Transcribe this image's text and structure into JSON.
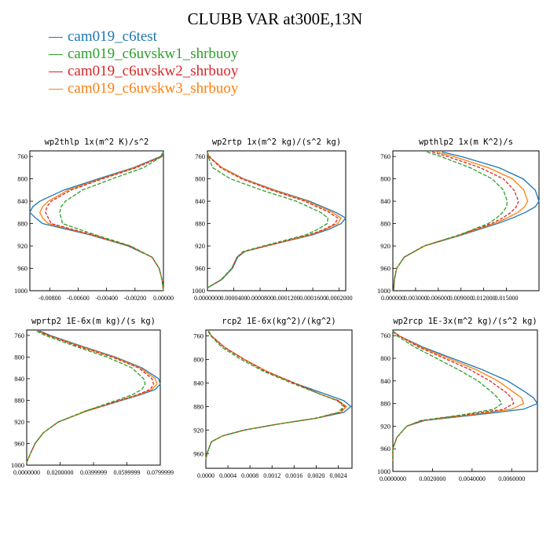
{
  "figure": {
    "title": "CLUBB VAR at300E,13N",
    "legend": [
      {
        "label": "cam019_c6test",
        "color": "#1f77b4"
      },
      {
        "label": "cam019_c6uvskw1_shrbuoy",
        "color": "#2ca02c"
      },
      {
        "label": "cam019_c6uvskw2_shrbuoy",
        "color": "#d62728"
      },
      {
        "label": "cam019_c6uvskw3_shrbuoy",
        "color": "#ff7f0e"
      }
    ]
  },
  "chart_data": [
    {
      "type": "line",
      "title": "wp2thlp  1x(m^2 K)/s^2",
      "xlim": [
        -0.0094,
        0.0
      ],
      "ylim": [
        1000,
        750
      ],
      "xticks": [
        "-0.00800",
        "-0.00600",
        "-0.00400",
        "-0.00200",
        "0.00000"
      ],
      "xtick_values": [
        -0.008,
        -0.006,
        -0.004,
        -0.002,
        0.0
      ],
      "yticks": [
        760,
        800,
        840,
        880,
        920,
        960,
        1000
      ],
      "y": [
        752,
        760,
        780,
        800,
        820,
        840,
        850,
        860,
        870,
        880,
        900,
        920,
        940,
        960,
        980,
        1000
      ],
      "series": [
        {
          "color": "#1f77b4",
          "dash": "solid",
          "values": [
            0.0,
            -0.0002,
            -0.0021,
            -0.0046,
            -0.007,
            -0.0087,
            -0.0092,
            -0.0094,
            -0.009,
            -0.0085,
            -0.0052,
            -0.0025,
            -0.0008,
            -0.0003,
            -0.0001,
            0.0
          ]
        },
        {
          "color": "#ff7f0e",
          "dash": "solid",
          "values": [
            0.0,
            -0.0001,
            -0.002,
            -0.0044,
            -0.0067,
            -0.0081,
            -0.0085,
            -0.0087,
            -0.0085,
            -0.0081,
            -0.0051,
            -0.0024,
            -0.0008,
            -0.0003,
            -0.0001,
            0.0
          ]
        },
        {
          "color": "#d62728",
          "dash": "4,2",
          "values": [
            0.0,
            -0.0001,
            -0.0019,
            -0.0043,
            -0.0065,
            -0.0079,
            -0.0082,
            -0.0083,
            -0.0081,
            -0.0079,
            -0.005,
            -0.0024,
            -0.0008,
            -0.0003,
            -0.0001,
            0.0
          ]
        },
        {
          "color": "#2ca02c",
          "dash": "5,2",
          "values": [
            0.0,
            -0.0001,
            -0.0014,
            -0.0036,
            -0.0057,
            -0.0069,
            -0.0072,
            -0.0073,
            -0.0072,
            -0.0071,
            -0.0048,
            -0.0023,
            -0.0008,
            -0.0003,
            -0.0001,
            0.0
          ]
        }
      ]
    },
    {
      "type": "line",
      "title": "wp2rtp  1x(m^2 kg)/(s^2 kg)",
      "xlim": [
        0.0,
        0.00021
      ],
      "ylim": [
        1000,
        750
      ],
      "xticks": [
        "0.0000000",
        "0.0000400",
        "0.0000800",
        "0.0001200",
        "0.0001600",
        "0.0002000"
      ],
      "xtick_values": [
        0.0,
        4e-05,
        8e-05,
        0.00012,
        0.00016,
        0.0002
      ],
      "yticks": [
        760,
        800,
        840,
        880,
        920,
        960,
        1000
      ],
      "y": [
        752,
        760,
        780,
        800,
        820,
        840,
        860,
        870,
        880,
        890,
        900,
        920,
        930,
        940,
        960,
        980,
        995
      ],
      "series": [
        {
          "color": "#1f77b4",
          "dash": "solid",
          "values": [
            0.0,
            2e-06,
            2.2e-05,
            5.5e-05,
            0.000102,
            0.000155,
            0.000195,
            0.00021,
            0.000203,
            0.000185,
            0.00016,
            9e-05,
            5.7e-05,
            4.6e-05,
            3.8e-05,
            2.2e-05,
            0.0
          ]
        },
        {
          "color": "#ff7f0e",
          "dash": "solid",
          "values": [
            0.0,
            2e-06,
            2.2e-05,
            5.4e-05,
            0.0001,
            0.000152,
            0.00019,
            0.000203,
            0.000198,
            0.00018,
            0.000157,
            9e-05,
            5.6e-05,
            4.5e-05,
            3.7e-05,
            2.1e-05,
            0.0
          ]
        },
        {
          "color": "#d62728",
          "dash": "4,2",
          "values": [
            0.0,
            2e-06,
            2e-05,
            5.2e-05,
            9.7e-05,
            0.000148,
            0.000185,
            0.000198,
            0.000194,
            0.000178,
            0.000155,
            8.9e-05,
            5.5e-05,
            4.5e-05,
            3.7e-05,
            2.1e-05,
            0.0
          ]
        },
        {
          "color": "#2ca02c",
          "dash": "5,2",
          "values": [
            0.0,
            1e-06,
            8e-06,
            3.5e-05,
            8.2e-05,
            0.000135,
            0.000172,
            0.000183,
            0.000182,
            0.000168,
            0.00015,
            8.5e-05,
            5.4e-05,
            4.5e-05,
            3.7e-05,
            2.1e-05,
            0.0
          ]
        }
      ]
    },
    {
      "type": "line",
      "title": "wpthlp2  1x(m K^2)/s",
      "xlim": [
        0.0,
        0.0193
      ],
      "ylim": [
        1000,
        750
      ],
      "xticks": [
        "0.000000",
        "0.003000",
        "0.006000",
        "0.009000",
        "0.012000",
        "0.015000"
      ],
      "xtick_values": [
        0.0,
        0.003,
        0.006,
        0.009,
        0.012,
        0.015
      ],
      "yticks": [
        760,
        800,
        840,
        880,
        920,
        960,
        1000
      ],
      "y": [
        752,
        760,
        780,
        800,
        820,
        840,
        850,
        860,
        870,
        880,
        900,
        920,
        940,
        960,
        980,
        1000
      ],
      "series": [
        {
          "color": "#1f77b4",
          "dash": "solid",
          "values": [
            0.0065,
            0.009,
            0.014,
            0.0172,
            0.0188,
            0.0193,
            0.0188,
            0.0175,
            0.0158,
            0.0138,
            0.0092,
            0.0042,
            0.0015,
            0.0005,
            0.0002,
            0.0001
          ]
        },
        {
          "color": "#ff7f0e",
          "dash": "solid",
          "values": [
            0.0058,
            0.008,
            0.0126,
            0.0158,
            0.0173,
            0.0178,
            0.0174,
            0.0165,
            0.0151,
            0.0134,
            0.009,
            0.0042,
            0.0015,
            0.0005,
            0.0002,
            0.0001
          ]
        },
        {
          "color": "#d62728",
          "dash": "4,2",
          "values": [
            0.0052,
            0.0072,
            0.0115,
            0.0146,
            0.016,
            0.0166,
            0.0163,
            0.0156,
            0.0145,
            0.013,
            0.0089,
            0.0041,
            0.0015,
            0.0005,
            0.0002,
            0.0001
          ]
        },
        {
          "color": "#2ca02c",
          "dash": "5,2",
          "values": [
            0.0045,
            0.0063,
            0.0102,
            0.0131,
            0.0146,
            0.0151,
            0.015,
            0.0145,
            0.0137,
            0.0126,
            0.0088,
            0.0041,
            0.0015,
            0.0005,
            0.0002,
            0.0001
          ]
        }
      ]
    },
    {
      "type": "line",
      "title": "wprtp2  1E-6x(m kg)/(s kg)",
      "xlim": [
        0.0,
        0.08
      ],
      "ylim": [
        1000,
        750
      ],
      "xticks": [
        "0.0000000",
        "0.0200000",
        "0.0399999",
        "0.0599999",
        "0.0799999"
      ],
      "xtick_values": [
        0.0,
        0.02,
        0.04,
        0.06,
        0.08
      ],
      "yticks": [
        760,
        800,
        840,
        880,
        920,
        960,
        1000
      ],
      "y": [
        752,
        760,
        780,
        800,
        820,
        840,
        850,
        860,
        870,
        880,
        900,
        920,
        940,
        960,
        980,
        995
      ],
      "series": [
        {
          "color": "#1f77b4",
          "dash": "solid",
          "values": [
            0.008,
            0.014,
            0.033,
            0.053,
            0.069,
            0.079,
            0.08,
            0.077,
            0.068,
            0.057,
            0.036,
            0.019,
            0.01,
            0.005,
            0.002,
            0.0
          ]
        },
        {
          "color": "#ff7f0e",
          "dash": "solid",
          "values": [
            0.007,
            0.013,
            0.032,
            0.052,
            0.068,
            0.077,
            0.078,
            0.075,
            0.067,
            0.056,
            0.036,
            0.019,
            0.01,
            0.005,
            0.002,
            0.0
          ]
        },
        {
          "color": "#d62728",
          "dash": "4,2",
          "values": [
            0.007,
            0.013,
            0.031,
            0.051,
            0.067,
            0.075,
            0.076,
            0.074,
            0.066,
            0.056,
            0.035,
            0.019,
            0.01,
            0.005,
            0.002,
            0.0
          ]
        },
        {
          "color": "#2ca02c",
          "dash": "5,2",
          "values": [
            0.006,
            0.011,
            0.029,
            0.048,
            0.063,
            0.07,
            0.071,
            0.069,
            0.063,
            0.054,
            0.035,
            0.019,
            0.01,
            0.005,
            0.002,
            0.0
          ]
        }
      ]
    },
    {
      "type": "line",
      "title": "rcp2  1E-6x(kg^2)/(kg^2)",
      "xlim": [
        0.0,
        0.00265
      ],
      "ylim": [
        985,
        750
      ],
      "xticks": [
        "0.0000",
        "0.0004",
        "0.0008",
        "0.0012",
        "0.0016",
        "0.0020",
        "0.0024"
      ],
      "xtick_values": [
        0.0,
        0.0004,
        0.0008,
        0.0012,
        0.0016,
        0.002,
        0.0024
      ],
      "yticks": [
        760,
        800,
        840,
        880,
        920,
        960
      ],
      "y": [
        752,
        760,
        780,
        800,
        820,
        840,
        860,
        870,
        880,
        890,
        900,
        910,
        920,
        930,
        940,
        960,
        970
      ],
      "series": [
        {
          "color": "#1f77b4",
          "dash": "solid",
          "values": [
            5e-05,
            0.0001,
            0.00035,
            0.0007,
            0.0011,
            0.0016,
            0.0022,
            0.0025,
            0.00263,
            0.0025,
            0.002,
            0.0013,
            0.0007,
            0.0003,
            0.0001,
            2e-05,
            0.0
          ]
        },
        {
          "color": "#ff7f0e",
          "dash": "solid",
          "values": [
            5e-05,
            0.0001,
            0.00035,
            0.0007,
            0.0011,
            0.0016,
            0.0021,
            0.0024,
            0.00255,
            0.00245,
            0.002,
            0.0013,
            0.0007,
            0.0003,
            0.0001,
            2e-05,
            0.0
          ]
        },
        {
          "color": "#d62728",
          "dash": "4,2",
          "values": [
            5e-05,
            0.0001,
            0.00034,
            0.00069,
            0.00108,
            0.0016,
            0.0021,
            0.0024,
            0.00252,
            0.00243,
            0.002,
            0.0013,
            0.0007,
            0.0003,
            0.0001,
            2e-05,
            0.0
          ]
        },
        {
          "color": "#2ca02c",
          "dash": "5,2",
          "values": [
            4e-05,
            9e-05,
            0.0003,
            0.00064,
            0.00104,
            0.00155,
            0.0021,
            0.00238,
            0.0025,
            0.0024,
            0.00198,
            0.0013,
            0.0007,
            0.0003,
            0.0001,
            2e-05,
            0.0
          ]
        }
      ]
    },
    {
      "type": "line",
      "title": "wp2rcp  1E-3x(m^2 kg)/(s^2 kg)",
      "xlim": [
        0.0,
        0.0073
      ],
      "ylim": [
        1000,
        750
      ],
      "xticks": [
        "0.0000000",
        "0.0020000",
        "0.0040000",
        "0.0060000"
      ],
      "xtick_values": [
        0.0,
        0.002,
        0.004,
        0.006
      ],
      "yticks": [
        760,
        800,
        840,
        880,
        920,
        960,
        1000
      ],
      "y": [
        752,
        760,
        780,
        800,
        820,
        840,
        860,
        870,
        880,
        890,
        900,
        910,
        920,
        940,
        960,
        980
      ],
      "series": [
        {
          "color": "#1f77b4",
          "dash": "solid",
          "values": [
            0.0,
            0.0003,
            0.0015,
            0.003,
            0.0045,
            0.0058,
            0.0067,
            0.0071,
            0.0073,
            0.0066,
            0.0042,
            0.0016,
            0.0007,
            0.0002,
            0.0,
            0.0
          ]
        },
        {
          "color": "#ff7f0e",
          "dash": "solid",
          "values": [
            0.0,
            0.0003,
            0.0014,
            0.0028,
            0.0042,
            0.0053,
            0.0061,
            0.0065,
            0.0066,
            0.006,
            0.0039,
            0.0015,
            0.0007,
            0.0002,
            0.0,
            0.0
          ]
        },
        {
          "color": "#d62728",
          "dash": "4,2",
          "values": [
            0.0,
            0.0003,
            0.0013,
            0.0026,
            0.0039,
            0.0049,
            0.0057,
            0.006,
            0.0061,
            0.0056,
            0.0037,
            0.0015,
            0.0007,
            0.0002,
            0.0,
            0.0
          ]
        },
        {
          "color": "#2ca02c",
          "dash": "5,2",
          "values": [
            0.0,
            0.0002,
            0.0011,
            0.0022,
            0.0033,
            0.0043,
            0.005,
            0.0053,
            0.0055,
            0.0051,
            0.0035,
            0.0014,
            0.0007,
            0.0002,
            0.0,
            0.0
          ]
        }
      ]
    }
  ]
}
